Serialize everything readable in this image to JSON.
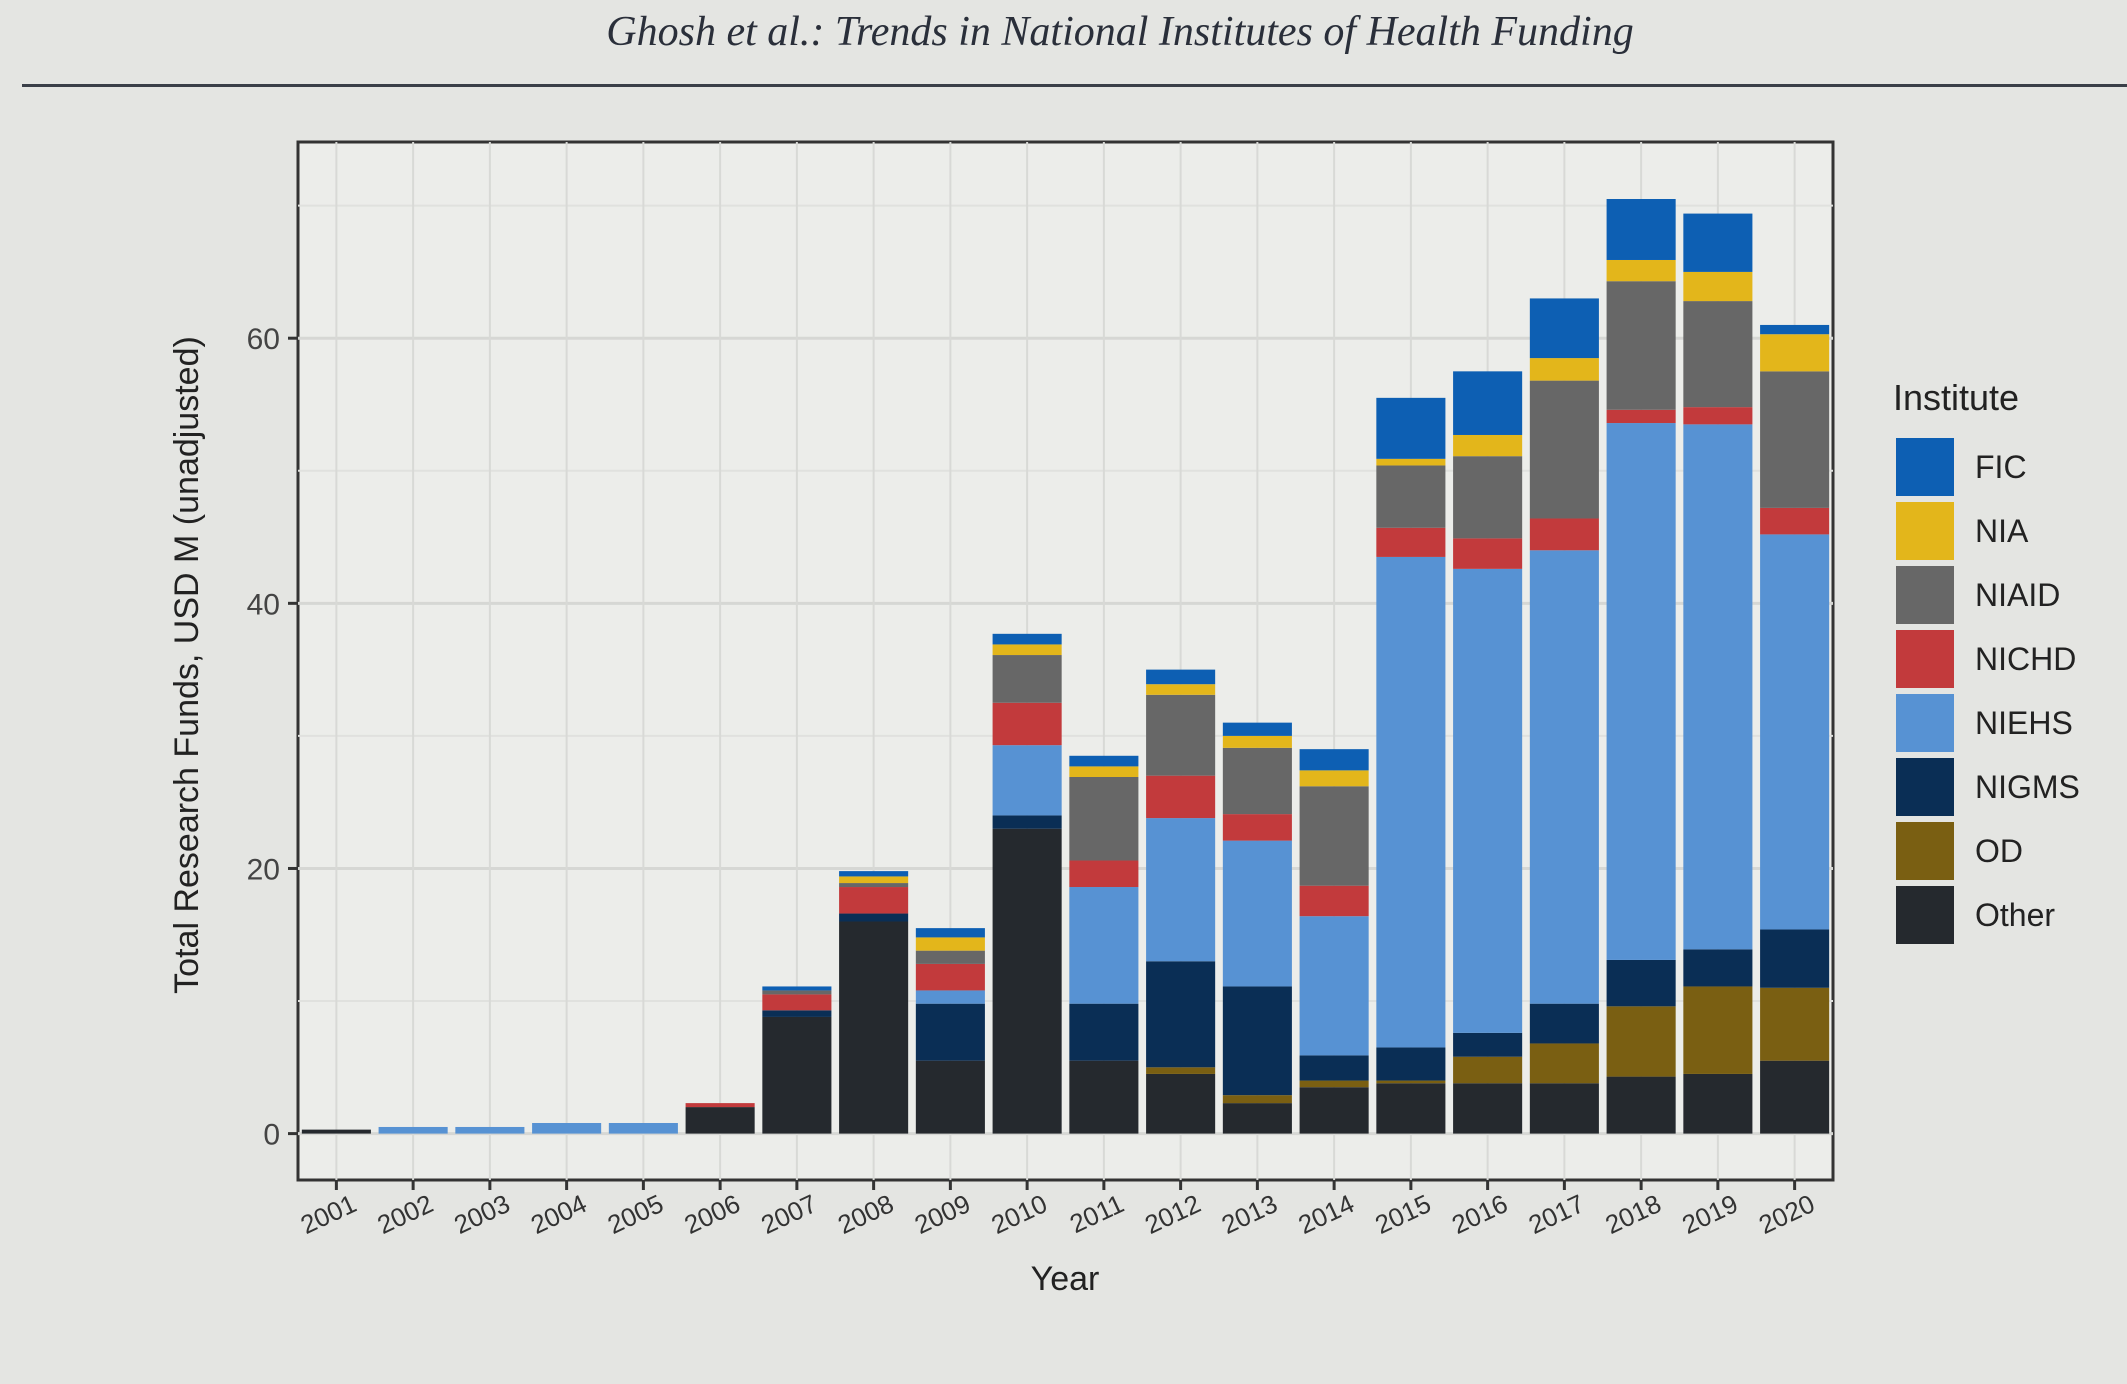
{
  "header": {
    "title": "Ghosh et al.: Trends in National Institutes of Health Funding"
  },
  "chart_data": {
    "type": "bar",
    "stacked": true,
    "title": "",
    "xlabel": "Year",
    "ylabel": "Total Research Funds, USD M (unadjusted)",
    "ylim": [
      -3.5,
      74.8
    ],
    "yticks": [
      0,
      20,
      40,
      60
    ],
    "grid": true,
    "legend": {
      "title": "Institute",
      "placement": "right"
    },
    "categories": [
      "2001",
      "2002",
      "2003",
      "2004",
      "2005",
      "2006",
      "2007",
      "2008",
      "2009",
      "2010",
      "2011",
      "2012",
      "2013",
      "2014",
      "2015",
      "2016",
      "2017",
      "2018",
      "2019",
      "2020"
    ],
    "series": [
      {
        "name": "Other",
        "color": "#25292e",
        "values": [
          0.3,
          0,
          0,
          0,
          0,
          2.0,
          8.8,
          16,
          5.5,
          23,
          5.5,
          4.5,
          2.3,
          3.5,
          3.8,
          3.8,
          3.8,
          4.3,
          4.5,
          5.5
        ]
      },
      {
        "name": "OD",
        "color": "#7a5f12",
        "values": [
          0,
          0,
          0,
          0,
          0,
          0,
          0,
          0,
          0,
          0,
          0,
          0.5,
          0.6,
          0.5,
          0.2,
          2.0,
          3.0,
          5.3,
          6.6,
          5.5
        ]
      },
      {
        "name": "NIGMS",
        "color": "#0a2e55",
        "values": [
          0,
          0,
          0,
          0,
          0,
          0,
          0.5,
          0.6,
          4.3,
          1.0,
          4.3,
          8.0,
          8.2,
          1.9,
          2.5,
          1.8,
          3.0,
          3.5,
          2.8,
          4.4
        ]
      },
      {
        "name": "NIEHS",
        "color": "#5792d3",
        "values": [
          0,
          0.5,
          0.5,
          0.8,
          0.8,
          0,
          0,
          0,
          1.0,
          5.3,
          8.8,
          10.8,
          11.0,
          10.5,
          37.0,
          35.0,
          34.2,
          40.5,
          39.6,
          29.8
        ]
      },
      {
        "name": "NICHD",
        "color": "#c23a3c",
        "values": [
          0,
          0,
          0,
          0,
          0,
          0.3,
          1.2,
          2.0,
          2.0,
          3.2,
          2.0,
          3.2,
          2.0,
          2.3,
          2.2,
          2.3,
          2.4,
          1.0,
          1.3,
          2.0
        ]
      },
      {
        "name": "NIAID",
        "color": "#676767",
        "values": [
          0,
          0,
          0,
          0,
          0,
          0,
          0.3,
          0.3,
          1.0,
          3.6,
          6.3,
          6.1,
          5.0,
          7.5,
          4.7,
          6.2,
          10.4,
          9.7,
          8.0,
          10.3
        ]
      },
      {
        "name": "NIA",
        "color": "#e3b61b",
        "values": [
          0,
          0,
          0,
          0,
          0,
          0,
          0,
          0.5,
          1.0,
          0.8,
          0.8,
          0.8,
          0.9,
          1.2,
          0.5,
          1.6,
          1.7,
          1.6,
          2.2,
          2.8
        ]
      },
      {
        "name": "FIC",
        "color": "#0d5fb3",
        "values": [
          0,
          0,
          0,
          0,
          0,
          0,
          0.3,
          0.4,
          0.7,
          0.8,
          0.8,
          1.1,
          1.0,
          1.6,
          4.6,
          4.8,
          4.5,
          4.6,
          4.4,
          0.7
        ]
      }
    ]
  }
}
